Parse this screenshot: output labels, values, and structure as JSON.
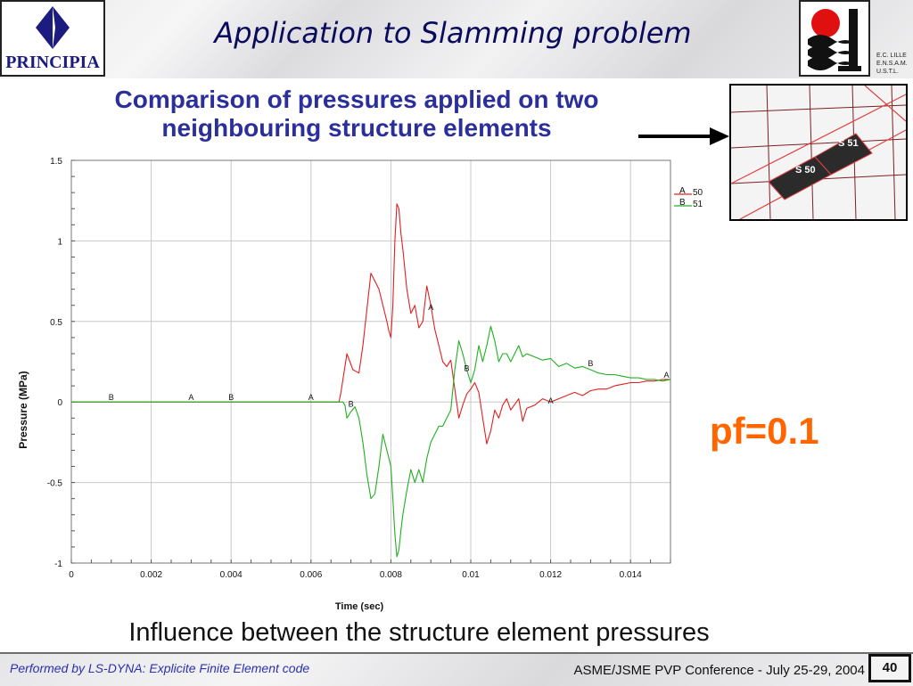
{
  "header": {
    "title": "Application to Slamming problem",
    "logo_left_text": "PRINCIPIA",
    "school_lines": [
      "E.C. LILLE",
      "E.N.S.A.M.",
      "U.S.T.L."
    ]
  },
  "subtitle_lines": [
    "Comparison of pressures applied on two",
    "neighbouring structure elements"
  ],
  "inset": {
    "element_labels": [
      "S 51",
      "S 50"
    ]
  },
  "annotation": "pf=0.1",
  "caption": "Influence between the structure element pressures",
  "footer": {
    "left": "Performed by LS-DYNA: Explicite Finite Element code",
    "right": "ASME/JSME PVP Conference - July 25-29, 2004",
    "page_number": "40"
  },
  "chart_data": {
    "type": "line",
    "xlabel": "Time (sec)",
    "ylabel": "Pressure (MPa)",
    "xlim": [
      0,
      0.015
    ],
    "ylim": [
      -1,
      1.5
    ],
    "xticks": [
      0,
      0.002,
      0.004,
      0.006,
      0.008,
      0.01,
      0.012,
      0.014
    ],
    "xtick_labels": [
      "0",
      "0.002",
      "0.004",
      "0.006",
      "0.008",
      "0.01",
      "0.012",
      "0.014"
    ],
    "yticks": [
      -1,
      -0.5,
      0,
      0.5,
      1,
      1.5
    ],
    "ytick_labels": [
      "-1",
      "-0.5",
      "0",
      "0.5",
      "1",
      "1.5"
    ],
    "grid": true,
    "legend_position": "top-right",
    "series": [
      {
        "name": "50",
        "marker": "A",
        "color": "#e02020",
        "markers_at": [
          [
            0.003,
            0
          ],
          [
            0.006,
            0
          ],
          [
            0.009,
            0.56
          ],
          [
            0.012,
            -0.02
          ],
          [
            0.0149,
            0.14
          ]
        ],
        "points": [
          [
            0,
            0
          ],
          [
            0.0067,
            0
          ],
          [
            0.00675,
            0.06
          ],
          [
            0.0069,
            0.3
          ],
          [
            0.00705,
            0.2
          ],
          [
            0.0072,
            0.18
          ],
          [
            0.0073,
            0.35
          ],
          [
            0.0075,
            0.8
          ],
          [
            0.0077,
            0.7
          ],
          [
            0.0079,
            0.5
          ],
          [
            0.00795,
            0.44
          ],
          [
            0.008,
            0.4
          ],
          [
            0.00805,
            0.6
          ],
          [
            0.0081,
            1.0
          ],
          [
            0.00815,
            1.23
          ],
          [
            0.0082,
            1.2
          ],
          [
            0.00825,
            1.05
          ],
          [
            0.0083,
            0.95
          ],
          [
            0.0084,
            0.7
          ],
          [
            0.0085,
            0.55
          ],
          [
            0.0086,
            0.6
          ],
          [
            0.0087,
            0.46
          ],
          [
            0.0088,
            0.5
          ],
          [
            0.0089,
            0.72
          ],
          [
            0.009,
            0.6
          ],
          [
            0.0091,
            0.45
          ],
          [
            0.0092,
            0.35
          ],
          [
            0.0093,
            0.25
          ],
          [
            0.0094,
            0.22
          ],
          [
            0.0095,
            0.26
          ],
          [
            0.0096,
            0.08
          ],
          [
            0.0097,
            -0.1
          ],
          [
            0.0098,
            -0.02
          ],
          [
            0.0099,
            0.05
          ],
          [
            0.01,
            0.08
          ],
          [
            0.0101,
            0.12
          ],
          [
            0.0102,
            0.06
          ],
          [
            0.0103,
            -0.1
          ],
          [
            0.0104,
            -0.26
          ],
          [
            0.0105,
            -0.18
          ],
          [
            0.0106,
            -0.05
          ],
          [
            0.0107,
            -0.1
          ],
          [
            0.0108,
            -0.02
          ],
          [
            0.0109,
            0.02
          ],
          [
            0.011,
            -0.05
          ],
          [
            0.0112,
            0.02
          ],
          [
            0.0113,
            -0.12
          ],
          [
            0.0114,
            -0.04
          ],
          [
            0.0116,
            -0.02
          ],
          [
            0.0118,
            0.02
          ],
          [
            0.012,
            0
          ],
          [
            0.0122,
            0.02
          ],
          [
            0.0124,
            0.04
          ],
          [
            0.0126,
            0.06
          ],
          [
            0.0128,
            0.04
          ],
          [
            0.013,
            0.07
          ],
          [
            0.0132,
            0.08
          ],
          [
            0.0134,
            0.08
          ],
          [
            0.0136,
            0.1
          ],
          [
            0.0138,
            0.11
          ],
          [
            0.014,
            0.12
          ],
          [
            0.0142,
            0.12
          ],
          [
            0.0144,
            0.13
          ],
          [
            0.0146,
            0.13
          ],
          [
            0.0148,
            0.14
          ],
          [
            0.015,
            0.14
          ]
        ]
      },
      {
        "name": "51",
        "marker": "B",
        "color": "#20b020",
        "markers_at": [
          [
            0.001,
            0
          ],
          [
            0.004,
            0
          ],
          [
            0.007,
            -0.04
          ],
          [
            0.0099,
            0.18
          ],
          [
            0.013,
            0.21
          ]
        ],
        "points": [
          [
            0,
            0
          ],
          [
            0.0068,
            0
          ],
          [
            0.00685,
            -0.02
          ],
          [
            0.0069,
            -0.1
          ],
          [
            0.007,
            -0.06
          ],
          [
            0.0071,
            -0.03
          ],
          [
            0.0072,
            -0.1
          ],
          [
            0.0073,
            -0.25
          ],
          [
            0.0074,
            -0.45
          ],
          [
            0.0075,
            -0.6
          ],
          [
            0.0076,
            -0.57
          ],
          [
            0.0077,
            -0.4
          ],
          [
            0.0078,
            -0.2
          ],
          [
            0.0079,
            -0.3
          ],
          [
            0.008,
            -0.4
          ],
          [
            0.00805,
            -0.6
          ],
          [
            0.0081,
            -0.82
          ],
          [
            0.00815,
            -0.96
          ],
          [
            0.0082,
            -0.92
          ],
          [
            0.00825,
            -0.8
          ],
          [
            0.0083,
            -0.7
          ],
          [
            0.0084,
            -0.55
          ],
          [
            0.0085,
            -0.42
          ],
          [
            0.0086,
            -0.5
          ],
          [
            0.0087,
            -0.42
          ],
          [
            0.0088,
            -0.5
          ],
          [
            0.0089,
            -0.35
          ],
          [
            0.009,
            -0.25
          ],
          [
            0.0091,
            -0.2
          ],
          [
            0.0092,
            -0.15
          ],
          [
            0.0093,
            -0.15
          ],
          [
            0.0094,
            -0.1
          ],
          [
            0.0095,
            -0.05
          ],
          [
            0.0096,
            0.2
          ],
          [
            0.0097,
            0.38
          ],
          [
            0.0098,
            0.3
          ],
          [
            0.0099,
            0.2
          ],
          [
            0.01,
            0.12
          ],
          [
            0.0101,
            0.2
          ],
          [
            0.0102,
            0.35
          ],
          [
            0.0103,
            0.25
          ],
          [
            0.0104,
            0.35
          ],
          [
            0.0105,
            0.47
          ],
          [
            0.0106,
            0.38
          ],
          [
            0.0107,
            0.25
          ],
          [
            0.0108,
            0.3
          ],
          [
            0.0109,
            0.3
          ],
          [
            0.011,
            0.25
          ],
          [
            0.0112,
            0.35
          ],
          [
            0.0113,
            0.28
          ],
          [
            0.0114,
            0.3
          ],
          [
            0.0116,
            0.28
          ],
          [
            0.0118,
            0.26
          ],
          [
            0.012,
            0.27
          ],
          [
            0.0122,
            0.22
          ],
          [
            0.0124,
            0.24
          ],
          [
            0.0126,
            0.21
          ],
          [
            0.0128,
            0.22
          ],
          [
            0.013,
            0.2
          ],
          [
            0.0132,
            0.18
          ],
          [
            0.0134,
            0.17
          ],
          [
            0.0136,
            0.17
          ],
          [
            0.0138,
            0.16
          ],
          [
            0.014,
            0.15
          ],
          [
            0.0142,
            0.15
          ],
          [
            0.0144,
            0.14
          ],
          [
            0.0146,
            0.14
          ],
          [
            0.0148,
            0.13
          ],
          [
            0.015,
            0.14
          ]
        ]
      }
    ]
  }
}
